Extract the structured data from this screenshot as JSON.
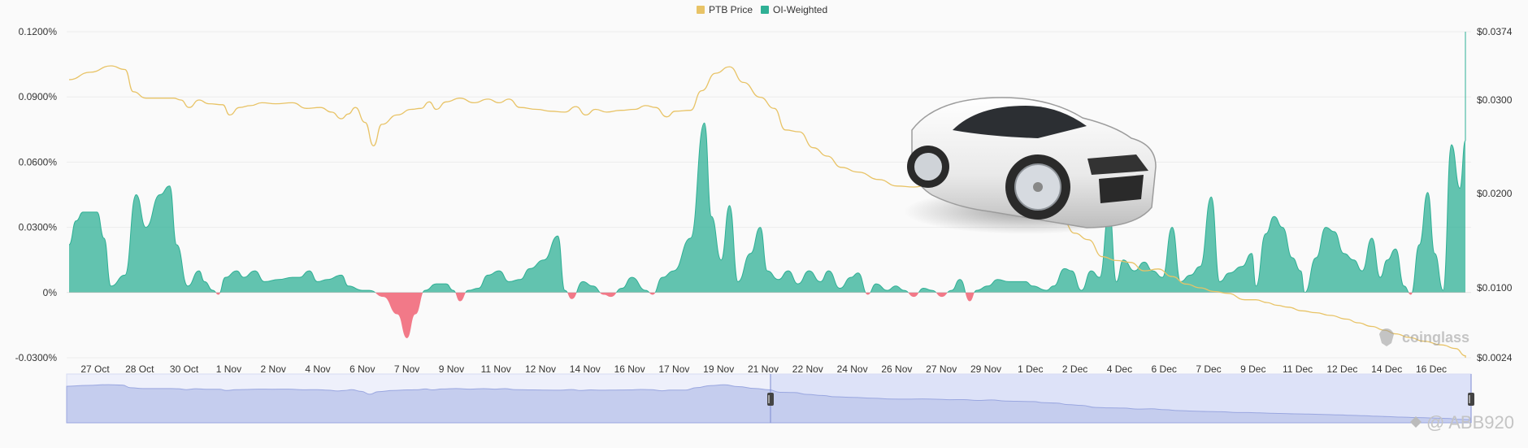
{
  "chart_data": {
    "type": "area",
    "legend": [
      {
        "name": "PTB Price",
        "color": "#e8c366"
      },
      {
        "name": "OI-Weighted",
        "color": "#2fb095"
      }
    ],
    "legend_position": "top-center",
    "grid": true,
    "y_left": {
      "ticks": [
        "0.1200%",
        "0.0900%",
        "0.0600%",
        "0.0300%",
        "0%",
        "-0.0300%"
      ],
      "tick_values": [
        0.12,
        0.09,
        0.06,
        0.03,
        0,
        -0.03
      ],
      "range": [
        -0.03,
        0.12
      ],
      "unit": "%"
    },
    "y_right": {
      "ticks": [
        "$0.0374",
        "$0.0300",
        "$0.0200",
        "$0.0100",
        "$0.0024"
      ],
      "tick_values": [
        0.0374,
        0.03,
        0.02,
        0.01,
        0.0024
      ],
      "range": [
        0.0024,
        0.0374
      ],
      "unit": "$"
    },
    "x_ticks": [
      "27 Oct",
      "28 Oct",
      "30 Oct",
      "1 Nov",
      "2 Nov",
      "4 Nov",
      "6 Nov",
      "7 Nov",
      "9 Nov",
      "11 Nov",
      "12 Nov",
      "14 Nov",
      "16 Nov",
      "17 Nov",
      "19 Nov",
      "21 Nov",
      "22 Nov",
      "24 Nov",
      "26 Nov",
      "27 Nov",
      "29 Nov",
      "1 Dec",
      "2 Dec",
      "4 Dec",
      "6 Dec",
      "7 Dec",
      "9 Dec",
      "11 Dec",
      "12 Dec",
      "14 Dec",
      "16 Dec"
    ],
    "x_range": [
      0,
      100
    ],
    "series": [
      {
        "name": "OI-Weighted",
        "axis": "left",
        "color_positive": "#2fb095",
        "color_negative": "#f0596b",
        "points": [
          [
            0,
            0.022
          ],
          [
            0.5,
            0.033
          ],
          [
            1,
            0.037
          ],
          [
            2,
            0.037
          ],
          [
            2.5,
            0.025
          ],
          [
            3,
            0.003
          ],
          [
            4,
            0.008
          ],
          [
            4.8,
            0.045
          ],
          [
            5.5,
            0.03
          ],
          [
            6.5,
            0.045
          ],
          [
            7.2,
            0.049
          ],
          [
            7.7,
            0.022
          ],
          [
            8.5,
            0.003
          ],
          [
            9.3,
            0.01
          ],
          [
            9.7,
            0.005
          ],
          [
            10.3,
            0.001
          ],
          [
            10.7,
            -0.001
          ],
          [
            11.2,
            0.007
          ],
          [
            12,
            0.01
          ],
          [
            12.5,
            0.007
          ],
          [
            13.3,
            0.01
          ],
          [
            14,
            0.005
          ],
          [
            15,
            0.006
          ],
          [
            16,
            0.007
          ],
          [
            16.5,
            0.007
          ],
          [
            17.2,
            0.01
          ],
          [
            17.8,
            0.005
          ],
          [
            18.5,
            0.006
          ],
          [
            19.5,
            0.008
          ],
          [
            20,
            0.003
          ],
          [
            21,
            0.001
          ],
          [
            21.5,
            0.001
          ],
          [
            22.5,
            -0.002
          ],
          [
            23.5,
            -0.01
          ],
          [
            24.2,
            -0.021
          ],
          [
            24.8,
            -0.01
          ],
          [
            25.5,
            0.001
          ],
          [
            26.3,
            0.004
          ],
          [
            27,
            0.004
          ],
          [
            27.5,
            0.001
          ],
          [
            28,
            -0.004
          ],
          [
            28.6,
            0.001
          ],
          [
            29.3,
            0.002
          ],
          [
            30,
            0.008
          ],
          [
            30.8,
            0.01
          ],
          [
            31.5,
            0.005
          ],
          [
            32.3,
            0.006
          ],
          [
            33,
            0.011
          ],
          [
            34,
            0.015
          ],
          [
            35,
            0.026
          ],
          [
            35.5,
            0.001
          ],
          [
            36,
            -0.003
          ],
          [
            36.8,
            0.005
          ],
          [
            37.5,
            0.003
          ],
          [
            38.3,
            -0.001
          ],
          [
            38.8,
            -0.002
          ],
          [
            39.6,
            0.002
          ],
          [
            40.3,
            0.007
          ],
          [
            41.3,
            0.001
          ],
          [
            41.8,
            -0.001
          ],
          [
            42.5,
            0.007
          ],
          [
            43.3,
            0.01
          ],
          [
            44.5,
            0.025
          ],
          [
            45.5,
            0.078
          ],
          [
            46,
            0.035
          ],
          [
            46.7,
            0.015
          ],
          [
            47.3,
            0.04
          ],
          [
            47.9,
            0.005
          ],
          [
            48.8,
            0.018
          ],
          [
            49.5,
            0.03
          ],
          [
            50,
            0.01
          ],
          [
            50.8,
            0.006
          ],
          [
            51.5,
            0.01
          ],
          [
            52.2,
            0.004
          ],
          [
            53,
            0.01
          ],
          [
            53.8,
            0.005
          ],
          [
            54.4,
            0.01
          ],
          [
            55.2,
            0.002
          ],
          [
            56,
            0.007
          ],
          [
            56.5,
            0.009
          ],
          [
            57.2,
            -0.001
          ],
          [
            57.8,
            0.004
          ],
          [
            58.6,
            0.001
          ],
          [
            59.2,
            0.003
          ],
          [
            59.8,
            0.001
          ],
          [
            60.5,
            -0.002
          ],
          [
            61.2,
            0.002
          ],
          [
            61.8,
            0.001
          ],
          [
            62.5,
            -0.002
          ],
          [
            63.2,
            0.001
          ],
          [
            63.8,
            0.006
          ],
          [
            64.5,
            -0.004
          ],
          [
            65,
            0.001
          ],
          [
            65.8,
            0.003
          ],
          [
            66.5,
            0.006
          ],
          [
            67.3,
            0.005
          ],
          [
            68.5,
            0.005
          ],
          [
            69,
            0.003
          ],
          [
            70,
            0.001
          ],
          [
            70.5,
            0.003
          ],
          [
            71.3,
            0.011
          ],
          [
            71.8,
            0.01
          ],
          [
            72.5,
            0.001
          ],
          [
            73.2,
            0.01
          ],
          [
            73.8,
            0.007
          ],
          [
            74.5,
            0.038
          ],
          [
            75,
            0.005
          ],
          [
            75.5,
            0.015
          ],
          [
            76.3,
            0.01
          ],
          [
            77,
            0.014
          ],
          [
            77.6,
            0.01
          ],
          [
            78.3,
            0.007
          ],
          [
            79,
            0.03
          ],
          [
            79.6,
            0.005
          ],
          [
            80.3,
            0.008
          ],
          [
            81,
            0.012
          ],
          [
            81.8,
            0.044
          ],
          [
            82.4,
            0.005
          ],
          [
            83.1,
            0.009
          ],
          [
            84,
            0.012
          ],
          [
            84.7,
            0.018
          ],
          [
            85,
            0.003
          ],
          [
            85.7,
            0.027
          ],
          [
            86.3,
            0.035
          ],
          [
            86.9,
            0.03
          ],
          [
            87.6,
            0.016
          ],
          [
            88.2,
            0.01
          ],
          [
            88.5,
            0.0
          ],
          [
            89.3,
            0.016
          ],
          [
            90,
            0.03
          ],
          [
            90.6,
            0.028
          ],
          [
            91.3,
            0.018
          ],
          [
            92,
            0.015
          ],
          [
            92.6,
            0.01
          ],
          [
            93.3,
            0.025
          ],
          [
            93.9,
            0.007
          ],
          [
            94.4,
            0.015
          ],
          [
            95,
            0.02
          ],
          [
            95.6,
            0.003
          ],
          [
            96.1,
            -0.001
          ],
          [
            96.7,
            0.022
          ],
          [
            97.3,
            0.046
          ],
          [
            97.8,
            0.018
          ],
          [
            98.4,
            0.001
          ],
          [
            99,
            0.068
          ],
          [
            99.6,
            0.048
          ],
          [
            100.3,
            0.07
          ],
          [
            101,
            0.12
          ]
        ],
        "note": "estimated"
      },
      {
        "name": "PTB Price",
        "axis": "right",
        "color": "#e8c366",
        "points": [
          [
            0,
            0.0322
          ],
          [
            1.5,
            0.033
          ],
          [
            3,
            0.0337
          ],
          [
            4,
            0.0333
          ],
          [
            4.6,
            0.0309
          ],
          [
            5.5,
            0.0302
          ],
          [
            7.5,
            0.0302
          ],
          [
            8,
            0.03
          ],
          [
            8.6,
            0.0292
          ],
          [
            9.3,
            0.03
          ],
          [
            10,
            0.0296
          ],
          [
            11,
            0.0295
          ],
          [
            11.5,
            0.0284
          ],
          [
            12.2,
            0.0292
          ],
          [
            13,
            0.0294
          ],
          [
            13.8,
            0.0297
          ],
          [
            14.8,
            0.0296
          ],
          [
            16,
            0.0297
          ],
          [
            17,
            0.0291
          ],
          [
            18,
            0.0292
          ],
          [
            18.8,
            0.0287
          ],
          [
            19.5,
            0.028
          ],
          [
            20,
            0.0285
          ],
          [
            20.5,
            0.0292
          ],
          [
            21.2,
            0.0276
          ],
          [
            21.8,
            0.0251
          ],
          [
            22.4,
            0.0274
          ],
          [
            23.5,
            0.0284
          ],
          [
            24.5,
            0.029
          ],
          [
            25.2,
            0.0291
          ],
          [
            25.8,
            0.0298
          ],
          [
            26.3,
            0.029
          ],
          [
            27,
            0.0298
          ],
          [
            28,
            0.0302
          ],
          [
            29,
            0.0297
          ],
          [
            30,
            0.0301
          ],
          [
            30.8,
            0.0297
          ],
          [
            31.5,
            0.0301
          ],
          [
            32.3,
            0.0292
          ],
          [
            33.5,
            0.029
          ],
          [
            34.5,
            0.0288
          ],
          [
            35.5,
            0.0287
          ],
          [
            36.3,
            0.0293
          ],
          [
            37,
            0.0284
          ],
          [
            37.7,
            0.029
          ],
          [
            38.5,
            0.0287
          ],
          [
            39.5,
            0.0289
          ],
          [
            40.5,
            0.029
          ],
          [
            41.3,
            0.0294
          ],
          [
            42,
            0.0292
          ],
          [
            42.8,
            0.0282
          ],
          [
            43.4,
            0.0288
          ],
          [
            44.5,
            0.0289
          ],
          [
            45.3,
            0.031
          ],
          [
            46.3,
            0.0329
          ],
          [
            47.3,
            0.0336
          ],
          [
            48.3,
            0.0319
          ],
          [
            49.5,
            0.0303
          ],
          [
            50.5,
            0.0291
          ],
          [
            51.3,
            0.0268
          ],
          [
            52.3,
            0.0266
          ],
          [
            53.3,
            0.0249
          ],
          [
            54.3,
            0.024
          ],
          [
            55.3,
            0.0228
          ],
          [
            56.5,
            0.0223
          ],
          [
            58,
            0.0215
          ],
          [
            59.3,
            0.0208
          ],
          [
            60.5,
            0.0207
          ],
          [
            61.5,
            0.0209
          ],
          [
            62.5,
            0.0206
          ],
          [
            63.5,
            0.0202
          ],
          [
            64.5,
            0.0203
          ],
          [
            65.5,
            0.0195
          ],
          [
            66.5,
            0.02
          ],
          [
            67.5,
            0.019
          ],
          [
            68.3,
            0.0188
          ],
          [
            69.5,
            0.0185
          ],
          [
            70.3,
            0.0175
          ],
          [
            71.2,
            0.0171
          ],
          [
            72,
            0.0158
          ],
          [
            73,
            0.0151
          ],
          [
            74,
            0.0133
          ],
          [
            75,
            0.0129
          ],
          [
            76,
            0.0127
          ],
          [
            77,
            0.0118
          ],
          [
            78,
            0.012
          ],
          [
            79,
            0.0112
          ],
          [
            80,
            0.0104
          ],
          [
            81,
            0.01
          ],
          [
            82,
            0.0096
          ],
          [
            83,
            0.0094
          ],
          [
            84.2,
            0.0087
          ],
          [
            85,
            0.0087
          ],
          [
            85.8,
            0.0084
          ],
          [
            86.5,
            0.0081
          ],
          [
            87.3,
            0.0079
          ],
          [
            88.3,
            0.0075
          ],
          [
            89.3,
            0.0073
          ],
          [
            90.3,
            0.007
          ],
          [
            91.5,
            0.0066
          ],
          [
            92.3,
            0.0062
          ],
          [
            93.3,
            0.0058
          ],
          [
            94.2,
            0.0054
          ],
          [
            95,
            0.005
          ],
          [
            96,
            0.0046
          ],
          [
            97,
            0.0042
          ],
          [
            98.3,
            0.0038
          ],
          [
            99.3,
            0.0034
          ],
          [
            100,
            0.0026
          ],
          [
            101,
            0.0024
          ]
        ],
        "note": "estimated"
      }
    ]
  },
  "watermarks": {
    "brand": "coinglass",
    "user": "@ ABB920"
  },
  "decoration": {
    "image": "white-sports-car"
  }
}
